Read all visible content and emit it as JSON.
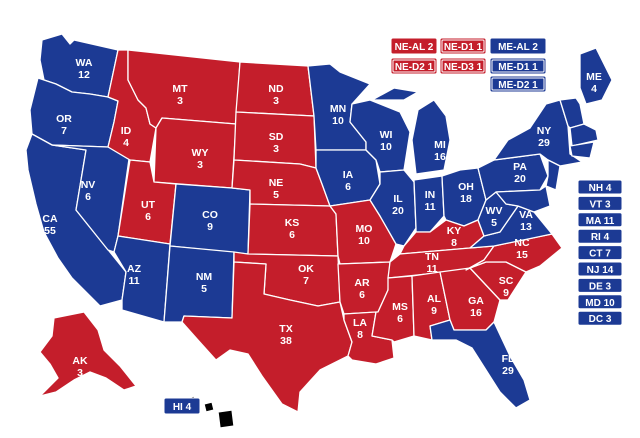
{
  "colors": {
    "rep": "#c41e2b",
    "dem": "#1c3a94",
    "border": "#ffffff"
  },
  "states": [
    {
      "id": "WA",
      "label": "WA",
      "ev": "12",
      "party": "dem"
    },
    {
      "id": "OR",
      "label": "OR",
      "ev": "7",
      "party": "dem"
    },
    {
      "id": "CA",
      "label": "CA",
      "ev": "55",
      "party": "dem"
    },
    {
      "id": "NV",
      "label": "NV",
      "ev": "6",
      "party": "dem"
    },
    {
      "id": "ID",
      "label": "ID",
      "ev": "4",
      "party": "rep"
    },
    {
      "id": "MT",
      "label": "MT",
      "ev": "3",
      "party": "rep"
    },
    {
      "id": "WY",
      "label": "WY",
      "ev": "3",
      "party": "rep"
    },
    {
      "id": "UT",
      "label": "UT",
      "ev": "6",
      "party": "rep"
    },
    {
      "id": "AZ",
      "label": "AZ",
      "ev": "11",
      "party": "dem"
    },
    {
      "id": "CO",
      "label": "CO",
      "ev": "9",
      "party": "dem"
    },
    {
      "id": "NM",
      "label": "NM",
      "ev": "5",
      "party": "dem"
    },
    {
      "id": "ND",
      "label": "ND",
      "ev": "3",
      "party": "rep"
    },
    {
      "id": "SD",
      "label": "SD",
      "ev": "3",
      "party": "rep"
    },
    {
      "id": "NE",
      "label": "NE",
      "ev": "5",
      "party": "rep"
    },
    {
      "id": "KS",
      "label": "KS",
      "ev": "6",
      "party": "rep"
    },
    {
      "id": "OK",
      "label": "OK",
      "ev": "7",
      "party": "rep"
    },
    {
      "id": "TX",
      "label": "TX",
      "ev": "38",
      "party": "rep"
    },
    {
      "id": "MN",
      "label": "MN",
      "ev": "10",
      "party": "dem"
    },
    {
      "id": "IA",
      "label": "IA",
      "ev": "6",
      "party": "dem"
    },
    {
      "id": "MO",
      "label": "MO",
      "ev": "10",
      "party": "rep"
    },
    {
      "id": "AR",
      "label": "AR",
      "ev": "6",
      "party": "rep"
    },
    {
      "id": "LA",
      "label": "LA",
      "ev": "8",
      "party": "rep"
    },
    {
      "id": "WI",
      "label": "WI",
      "ev": "10",
      "party": "dem"
    },
    {
      "id": "IL",
      "label": "IL",
      "ev": "20",
      "party": "dem"
    },
    {
      "id": "MI",
      "label": "MI",
      "ev": "16",
      "party": "dem"
    },
    {
      "id": "IN",
      "label": "IN",
      "ev": "11",
      "party": "dem"
    },
    {
      "id": "OH",
      "label": "OH",
      "ev": "18",
      "party": "dem"
    },
    {
      "id": "KY",
      "label": "KY",
      "ev": "8",
      "party": "rep"
    },
    {
      "id": "TN",
      "label": "TN",
      "ev": "11",
      "party": "rep"
    },
    {
      "id": "MS",
      "label": "MS",
      "ev": "6",
      "party": "rep"
    },
    {
      "id": "AL",
      "label": "AL",
      "ev": "9",
      "party": "rep"
    },
    {
      "id": "GA",
      "label": "GA",
      "ev": "16",
      "party": "rep"
    },
    {
      "id": "FL",
      "label": "FL",
      "ev": "29",
      "party": "dem"
    },
    {
      "id": "SC",
      "label": "SC",
      "ev": "9",
      "party": "rep"
    },
    {
      "id": "NC",
      "label": "NC",
      "ev": "15",
      "party": "rep"
    },
    {
      "id": "VA",
      "label": "VA",
      "ev": "13",
      "party": "dem"
    },
    {
      "id": "WV",
      "label": "WV",
      "ev": "5",
      "party": "dem"
    },
    {
      "id": "PA",
      "label": "PA",
      "ev": "20",
      "party": "dem"
    },
    {
      "id": "NY",
      "label": "NY",
      "ev": "29",
      "party": "dem"
    },
    {
      "id": "ME",
      "label": "ME",
      "ev": "4",
      "party": "dem"
    },
    {
      "id": "AK",
      "label": "AK",
      "ev": "3",
      "party": "rep"
    }
  ],
  "small_states": [
    {
      "label": "NH 4",
      "party": "dem"
    },
    {
      "label": "VT 3",
      "party": "dem"
    },
    {
      "label": "MA 11",
      "party": "dem"
    },
    {
      "label": "RI 4",
      "party": "dem"
    },
    {
      "label": "CT 7",
      "party": "dem"
    },
    {
      "label": "NJ 14",
      "party": "dem"
    },
    {
      "label": "DE 3",
      "party": "dem"
    },
    {
      "label": "MD 10",
      "party": "dem"
    },
    {
      "label": "DC 3",
      "party": "dem"
    }
  ],
  "hawaii": {
    "label": "HI 4",
    "party": "dem"
  },
  "districts": {
    "nebraska": [
      {
        "label": "NE-AL 2",
        "party": "rep"
      },
      {
        "label": "NE-D1 1",
        "party": "rep"
      },
      {
        "label": "NE-D2 1",
        "party": "rep"
      },
      {
        "label": "NE-D3 1",
        "party": "rep"
      }
    ],
    "maine": [
      {
        "label": "ME-AL 2",
        "party": "dem"
      },
      {
        "label": "ME-D1 1",
        "party": "dem"
      },
      {
        "label": "ME-D2 1",
        "party": "dem"
      }
    ]
  }
}
